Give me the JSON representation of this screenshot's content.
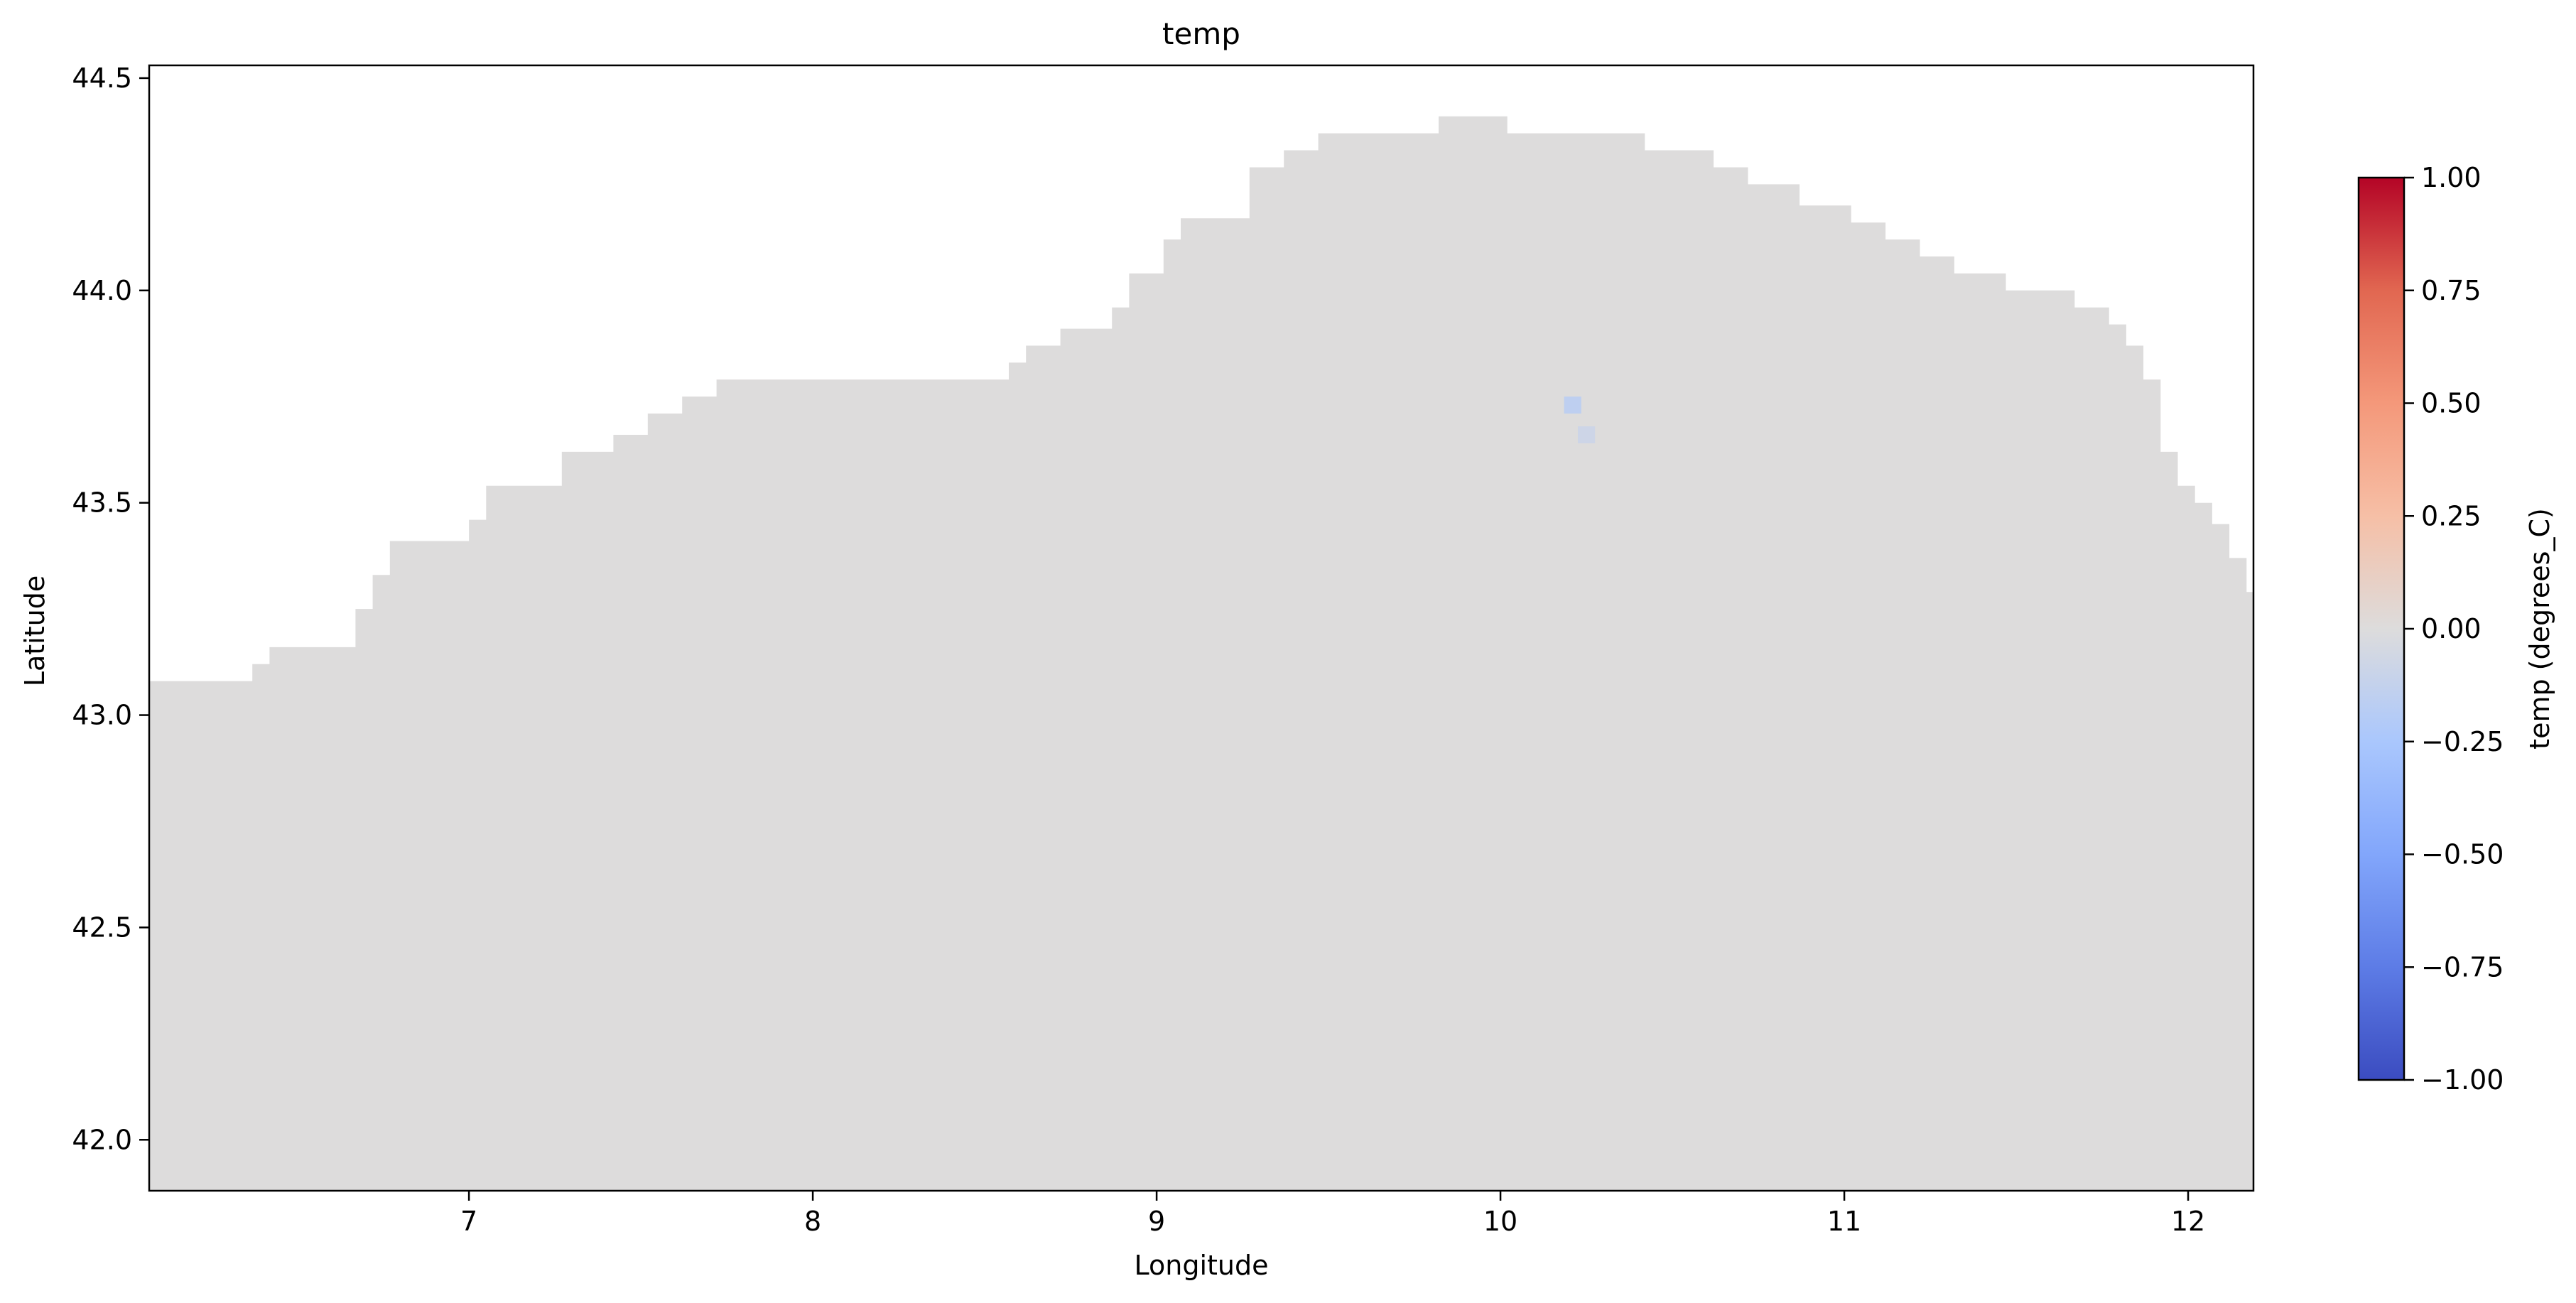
{
  "chart_data": {
    "type": "heatmap",
    "title": "temp",
    "xlabel": "Longitude",
    "ylabel": "Latitude",
    "xlim": [
      6.07,
      12.19
    ],
    "ylim": [
      41.88,
      44.53
    ],
    "x_ticks": [
      7,
      8,
      9,
      10,
      11,
      12
    ],
    "x_tick_labels": [
      "7",
      "8",
      "9",
      "10",
      "11",
      "12"
    ],
    "y_ticks": [
      42.0,
      42.5,
      43.0,
      43.5,
      44.0,
      44.5
    ],
    "y_tick_labels": [
      "42.0",
      "42.5",
      "43.0",
      "43.5",
      "44.0",
      "44.5"
    ],
    "grid": false,
    "colormap": "coolwarm",
    "colorbar": {
      "label": "temp (degrees_C)",
      "range": [
        -1.0,
        1.0
      ],
      "ticks": [
        1.0,
        0.75,
        0.5,
        0.25,
        0.0,
        -0.25,
        -0.5,
        -0.75,
        -1.0
      ],
      "tick_labels": [
        "1.00",
        "0.75",
        "0.50",
        "0.25",
        "0.00",
        "−0.25",
        "−0.50",
        "−0.75",
        "−1.00"
      ]
    },
    "field_value_range": [
      -0.2,
      0.0
    ],
    "sea_value": 0.0,
    "cold_cells": [
      {
        "lon": 10.21,
        "lat": 43.73,
        "value": -0.15
      },
      {
        "lon": 10.25,
        "lat": 43.66,
        "value": -0.08
      }
    ],
    "masked_land_color": "#ffffff",
    "coast_boundary": [
      [
        6.07,
        43.08
      ],
      [
        6.37,
        43.08
      ],
      [
        6.37,
        43.12
      ],
      [
        6.42,
        43.12
      ],
      [
        6.42,
        43.16
      ],
      [
        6.67,
        43.16
      ],
      [
        6.67,
        43.25
      ],
      [
        6.72,
        43.25
      ],
      [
        6.72,
        43.33
      ],
      [
        6.77,
        43.33
      ],
      [
        6.77,
        43.41
      ],
      [
        7.0,
        43.41
      ],
      [
        7.0,
        43.46
      ],
      [
        7.05,
        43.46
      ],
      [
        7.05,
        43.54
      ],
      [
        7.27,
        43.54
      ],
      [
        7.27,
        43.62
      ],
      [
        7.42,
        43.62
      ],
      [
        7.42,
        43.66
      ],
      [
        7.52,
        43.66
      ],
      [
        7.52,
        43.71
      ],
      [
        7.62,
        43.71
      ],
      [
        7.62,
        43.75
      ],
      [
        7.72,
        43.75
      ],
      [
        7.72,
        43.79
      ],
      [
        8.57,
        43.79
      ],
      [
        8.57,
        43.83
      ],
      [
        8.62,
        43.83
      ],
      [
        8.62,
        43.87
      ],
      [
        8.72,
        43.87
      ],
      [
        8.72,
        43.91
      ],
      [
        8.87,
        43.91
      ],
      [
        8.87,
        43.96
      ],
      [
        8.92,
        43.96
      ],
      [
        8.92,
        44.04
      ],
      [
        9.02,
        44.04
      ],
      [
        9.02,
        44.12
      ],
      [
        9.07,
        44.12
      ],
      [
        9.07,
        44.17
      ],
      [
        9.27,
        44.17
      ],
      [
        9.27,
        44.29
      ],
      [
        9.37,
        44.29
      ],
      [
        9.37,
        44.33
      ],
      [
        9.47,
        44.33
      ],
      [
        9.47,
        44.37
      ],
      [
        9.82,
        44.37
      ],
      [
        9.82,
        44.41
      ],
      [
        10.02,
        44.41
      ],
      [
        10.02,
        44.37
      ],
      [
        10.42,
        44.37
      ],
      [
        10.42,
        44.33
      ],
      [
        10.62,
        44.33
      ],
      [
        10.62,
        44.29
      ],
      [
        10.72,
        44.29
      ],
      [
        10.72,
        44.25
      ],
      [
        10.87,
        44.25
      ],
      [
        10.87,
        44.2
      ],
      [
        11.02,
        44.2
      ],
      [
        11.02,
        44.16
      ],
      [
        11.12,
        44.16
      ],
      [
        11.12,
        44.12
      ],
      [
        11.22,
        44.12
      ],
      [
        11.22,
        44.08
      ],
      [
        11.32,
        44.08
      ],
      [
        11.32,
        44.04
      ],
      [
        11.47,
        44.04
      ],
      [
        11.47,
        44.0
      ],
      [
        11.67,
        44.0
      ],
      [
        11.67,
        43.96
      ],
      [
        11.77,
        43.96
      ],
      [
        11.77,
        43.92
      ],
      [
        11.82,
        43.92
      ],
      [
        11.82,
        43.87
      ],
      [
        11.87,
        43.87
      ],
      [
        11.87,
        43.79
      ],
      [
        11.92,
        43.79
      ],
      [
        11.92,
        43.62
      ],
      [
        11.97,
        43.62
      ],
      [
        11.97,
        43.54
      ],
      [
        12.02,
        43.54
      ],
      [
        12.02,
        43.5
      ],
      [
        12.07,
        43.5
      ],
      [
        12.07,
        43.45
      ],
      [
        12.12,
        43.45
      ],
      [
        12.12,
        43.37
      ],
      [
        12.17,
        43.37
      ],
      [
        12.17,
        43.29
      ],
      [
        12.19,
        43.29
      ],
      [
        12.19,
        41.88
      ],
      [
        6.07,
        41.88
      ]
    ]
  }
}
